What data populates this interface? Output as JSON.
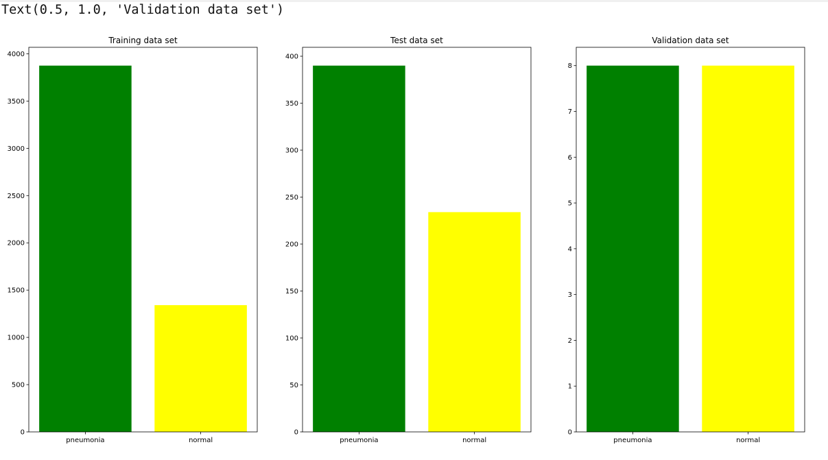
{
  "output": {
    "text": "Text(0.5, 1.0, 'Validation data set')"
  },
  "chart_data": [
    {
      "type": "bar",
      "title": "Training data set",
      "categories": [
        "pneumonia",
        "normal"
      ],
      "values": [
        3875,
        1341
      ],
      "colors": [
        "#008000",
        "#ffff00"
      ],
      "ylim": [
        0,
        4068.75
      ],
      "yticks": [
        0,
        500,
        1000,
        1500,
        2000,
        2500,
        3000,
        3500,
        4000
      ],
      "xlabel": "",
      "ylabel": ""
    },
    {
      "type": "bar",
      "title": "Test data set",
      "categories": [
        "pneumonia",
        "normal"
      ],
      "values": [
        390,
        234
      ],
      "colors": [
        "#008000",
        "#ffff00"
      ],
      "ylim": [
        0,
        409.5
      ],
      "yticks": [
        0,
        50,
        100,
        150,
        200,
        250,
        300,
        350,
        400
      ],
      "xlabel": "",
      "ylabel": ""
    },
    {
      "type": "bar",
      "title": "Validation data set",
      "categories": [
        "pneumonia",
        "normal"
      ],
      "values": [
        8,
        8
      ],
      "colors": [
        "#008000",
        "#ffff00"
      ],
      "ylim": [
        0,
        8.4
      ],
      "yticks": [
        0,
        1,
        2,
        3,
        4,
        5,
        6,
        7,
        8
      ],
      "xlabel": "",
      "ylabel": ""
    }
  ]
}
